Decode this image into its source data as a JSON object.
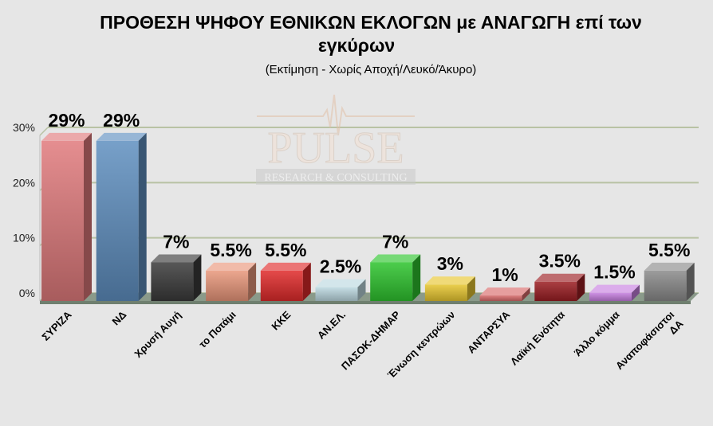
{
  "chart_data": {
    "type": "bar",
    "title_line1": "ΠΡΟΘΕΣΗ ΨΗΦΟΥ ΕΘΝΙΚΩΝ ΕΚΛΟΓΩΝ με ΑΝΑΓΩΓΗ επί των",
    "title_line2": "εγκύρων",
    "subtitle": "(Εκτίμηση  -  Χωρίς Αποχή/Λευκό/Άκυρο)",
    "watermark": {
      "main": "PULSE",
      "sub": "RESEARCH & CONSULTING"
    },
    "ylim": [
      0,
      30
    ],
    "yticks": [
      {
        "value": 0,
        "label": "0%"
      },
      {
        "value": 10,
        "label": "10%"
      },
      {
        "value": 20,
        "label": "20%"
      },
      {
        "value": 30,
        "label": "30%"
      }
    ],
    "grid": true,
    "bars": [
      {
        "category": [
          "ΣΥΡΙΖΑ"
        ],
        "value": 29,
        "label": "29%",
        "color": "#e07a7c"
      },
      {
        "category": [
          "ΝΔ"
        ],
        "value": 29,
        "label": "29%",
        "color": "#5f8fc0"
      },
      {
        "category": [
          "Χρυσή Αυγή"
        ],
        "value": 7,
        "label": "7%",
        "color": "#3a3a3a"
      },
      {
        "category": [
          "το Ποτάμι"
        ],
        "value": 5.5,
        "label": "5.5%",
        "color": "#e9977b"
      },
      {
        "category": [
          "ΚΚΕ"
        ],
        "value": 5.5,
        "label": "5.5%",
        "color": "#e02a2a"
      },
      {
        "category": [
          "ΑΝ.ΕΛ."
        ],
        "value": 2.5,
        "label": "2.5%",
        "color": "#bcd8e0"
      },
      {
        "category": [
          "ΠΑΣΟΚ-ΔΗΜΑΡ"
        ],
        "value": 7,
        "label": "7%",
        "color": "#2ec42e"
      },
      {
        "category": [
          "Ένωση κεντρώων"
        ],
        "value": 3,
        "label": "3%",
        "color": "#e8c630"
      },
      {
        "category": [
          "ΑΝΤΑΡΣΥΑ"
        ],
        "value": 1,
        "label": "1%",
        "color": "#d86a6a"
      },
      {
        "category": [
          "Λαϊκή Ενότητα"
        ],
        "value": 3.5,
        "label": "3.5%",
        "color": "#9b1d22"
      },
      {
        "category": [
          "Άλλο κόμμα"
        ],
        "value": 1.5,
        "label": "1.5%",
        "color": "#c77fe0"
      },
      {
        "category": [
          "Αναποφάσιστοι",
          "ΔΑ"
        ],
        "value": 5.5,
        "label": "5.5%",
        "color": "#8a8a8a"
      }
    ]
  }
}
